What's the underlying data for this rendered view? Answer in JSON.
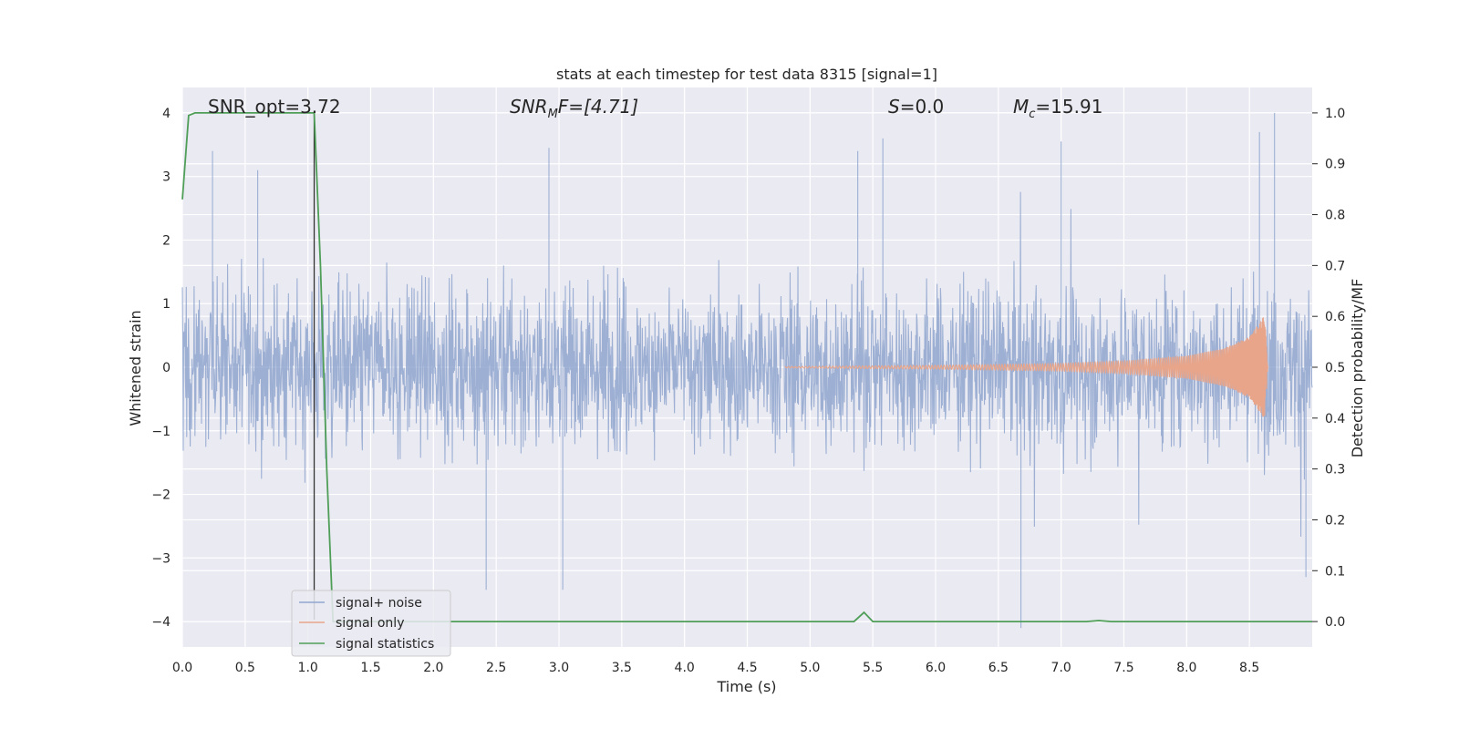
{
  "chart_data": {
    "type": "line",
    "title": "stats at each timestep for test data 8315 [signal=1]",
    "xlabel": "Time (s)",
    "ylabel_left": "Whitened strain",
    "ylabel_right": "Detection probability/MF",
    "xlim": [
      0.0,
      9.0
    ],
    "ylim_left": [
      -4.4,
      4.4
    ],
    "ylim_right": [
      -0.05,
      1.05
    ],
    "xticks": [
      "0.0",
      "0.5",
      "1.0",
      "1.5",
      "2.0",
      "2.5",
      "3.0",
      "3.5",
      "4.0",
      "4.5",
      "5.0",
      "5.5",
      "6.0",
      "6.5",
      "7.0",
      "7.5",
      "8.0",
      "8.5"
    ],
    "xtick_values": [
      0.0,
      0.5,
      1.0,
      1.5,
      2.0,
      2.5,
      3.0,
      3.5,
      4.0,
      4.5,
      5.0,
      5.5,
      6.0,
      6.5,
      7.0,
      7.5,
      8.0,
      8.5
    ],
    "yticks_left": [
      "−4",
      "−3",
      "−2",
      "−1",
      "0",
      "1",
      "2",
      "3",
      "4"
    ],
    "ytick_values_left": [
      -4,
      -3,
      -2,
      -1,
      0,
      1,
      2,
      3,
      4
    ],
    "yticks_right": [
      "0.0",
      "0.1",
      "0.2",
      "0.3",
      "0.4",
      "0.5",
      "0.6",
      "0.7",
      "0.8",
      "0.9",
      "1.0"
    ],
    "ytick_values_right": [
      0.0,
      0.1,
      0.2,
      0.3,
      0.4,
      0.5,
      0.6,
      0.7,
      0.8,
      0.9,
      1.0
    ],
    "grid": true,
    "legend_placement": "lower-left",
    "annotations": {
      "snr_opt": "SNR_opt=3.72",
      "snr_mf_main": "SNR",
      "snr_mf_sub": "M",
      "snr_mf_rest": "F=[4.71]",
      "s_main": "S",
      "s_rest": "=0.0",
      "mc_main": "M",
      "mc_sub": "c",
      "mc_rest": "=15.91"
    },
    "marker_line_x": 1.05,
    "series": [
      {
        "name": "signal+ noise",
        "color": "#8fa6cf",
        "axis": "left",
        "description": "whitened strain noise, typical amplitude about 1.6, peaks near 4",
        "typical_amplitude": 1.6,
        "notable_spikes": [
          {
            "x": 0.24,
            "y": 3.4
          },
          {
            "x": 0.6,
            "y": 3.1
          },
          {
            "x": 2.92,
            "y": 3.45
          },
          {
            "x": 5.38,
            "y": 3.4
          },
          {
            "x": 5.58,
            "y": 3.6
          },
          {
            "x": 6.68,
            "y": -4.1
          },
          {
            "x": 7.0,
            "y": 3.55
          },
          {
            "x": 8.7,
            "y": 4.0
          },
          {
            "x": 8.58,
            "y": 3.7
          },
          {
            "x": 2.42,
            "y": -3.5
          },
          {
            "x": 3.03,
            "y": -3.5
          },
          {
            "x": 8.95,
            "y": -3.3
          }
        ]
      },
      {
        "name": "signal only",
        "color": "#e8a58a",
        "axis": "left",
        "description": "chirp signal with growing amplitude ending near t=8.65",
        "points": [
          [
            4.8,
            0.01
          ],
          [
            6.0,
            0.03
          ],
          [
            7.0,
            0.06
          ],
          [
            7.5,
            0.1
          ],
          [
            8.0,
            0.18
          ],
          [
            8.3,
            0.3
          ],
          [
            8.5,
            0.48
          ],
          [
            8.62,
            0.82
          ],
          [
            8.65,
            0.0
          ]
        ]
      },
      {
        "name": "signal statistics",
        "color": "#4f9e58",
        "axis": "right",
        "points": [
          [
            0.0,
            0.83
          ],
          [
            0.05,
            0.995
          ],
          [
            0.1,
            1.0
          ],
          [
            1.0,
            1.0
          ],
          [
            1.05,
            1.0
          ],
          [
            1.1,
            0.7
          ],
          [
            1.15,
            0.3
          ],
          [
            1.2,
            0.0
          ],
          [
            5.35,
            0.0
          ],
          [
            5.43,
            0.018
          ],
          [
            5.5,
            0.0
          ],
          [
            7.2,
            0.0
          ],
          [
            7.3,
            0.002
          ],
          [
            7.4,
            0.0
          ],
          [
            9.0,
            0.0
          ]
        ]
      }
    ]
  }
}
